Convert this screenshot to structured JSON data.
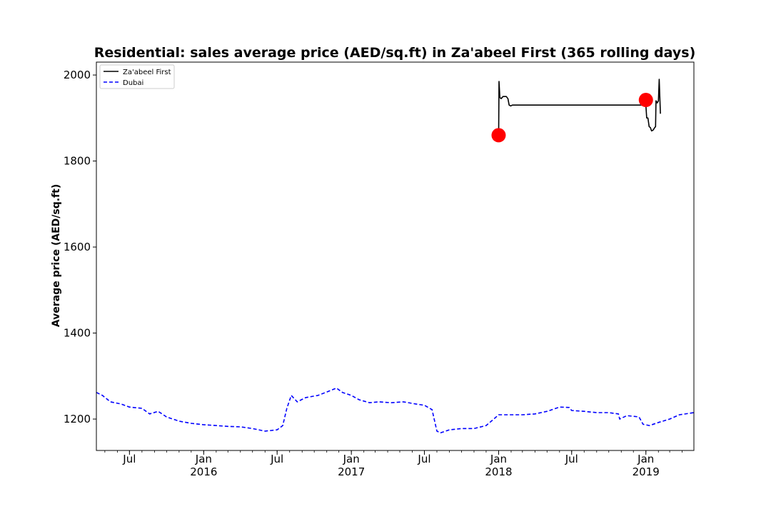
{
  "chart_data": {
    "type": "line",
    "title": "Residential: sales average price (AED/sq.ft) in Za'abeel First (365 rolling days)",
    "xlabel": "",
    "ylabel": "Average price (AED/sq.ft)",
    "xlim": [
      "2015-04-10",
      "2019-04-30"
    ],
    "ylim": [
      1127,
      2030
    ],
    "yticks": [
      1200,
      1400,
      1600,
      1800,
      2000
    ],
    "xticks": [
      {
        "date": "2015-07-01",
        "label": "Jul",
        "year": ""
      },
      {
        "date": "2016-01-01",
        "label": "Jan",
        "year": "2016"
      },
      {
        "date": "2016-07-01",
        "label": "Jul",
        "year": ""
      },
      {
        "date": "2017-01-01",
        "label": "Jan",
        "year": "2017"
      },
      {
        "date": "2017-07-01",
        "label": "Jul",
        "year": ""
      },
      {
        "date": "2018-01-01",
        "label": "Jan",
        "year": "2018"
      },
      {
        "date": "2018-07-01",
        "label": "Jul",
        "year": ""
      },
      {
        "date": "2019-01-01",
        "label": "Jan",
        "year": "2019"
      }
    ],
    "legend": {
      "placement": "top-left"
    },
    "grid": false,
    "series": [
      {
        "name": "Za'abeel First",
        "color": "#000000",
        "style": "solid",
        "points": [
          [
            "2018-01-01",
            1862
          ],
          [
            "2018-01-02",
            1985
          ],
          [
            "2018-01-04",
            1948
          ],
          [
            "2018-01-07",
            1945
          ],
          [
            "2018-01-12",
            1950
          ],
          [
            "2018-01-20",
            1950
          ],
          [
            "2018-01-24",
            1945
          ],
          [
            "2018-01-27",
            1930
          ],
          [
            "2018-01-31",
            1928
          ],
          [
            "2018-02-04",
            1930
          ],
          [
            "2018-05-10",
            1930
          ],
          [
            "2018-09-01",
            1930
          ],
          [
            "2018-12-20",
            1930
          ],
          [
            "2019-01-01",
            1930
          ],
          [
            "2019-01-03",
            1900
          ],
          [
            "2019-01-06",
            1900
          ],
          [
            "2019-01-09",
            1880
          ],
          [
            "2019-01-12",
            1878
          ],
          [
            "2019-01-15",
            1870
          ],
          [
            "2019-01-19",
            1872
          ],
          [
            "2019-01-23",
            1878
          ],
          [
            "2019-01-25",
            1880
          ],
          [
            "2019-01-26",
            1940
          ],
          [
            "2019-01-29",
            1935
          ],
          [
            "2019-02-01",
            1940
          ],
          [
            "2019-02-03",
            1990
          ],
          [
            "2019-02-06",
            1910
          ]
        ]
      },
      {
        "name": "Dubai",
        "color": "#0000ff",
        "style": "dashed",
        "points": [
          [
            "2015-04-10",
            1262
          ],
          [
            "2015-04-25",
            1255
          ],
          [
            "2015-05-15",
            1240
          ],
          [
            "2015-06-10",
            1235
          ],
          [
            "2015-07-01",
            1228
          ],
          [
            "2015-08-01",
            1225
          ],
          [
            "2015-08-20",
            1212
          ],
          [
            "2015-09-10",
            1218
          ],
          [
            "2015-10-01",
            1205
          ],
          [
            "2015-11-01",
            1195
          ],
          [
            "2015-12-01",
            1190
          ],
          [
            "2016-01-01",
            1187
          ],
          [
            "2016-02-01",
            1185
          ],
          [
            "2016-03-01",
            1183
          ],
          [
            "2016-04-01",
            1182
          ],
          [
            "2016-05-01",
            1178
          ],
          [
            "2016-06-01",
            1172
          ],
          [
            "2016-07-01",
            1175
          ],
          [
            "2016-07-15",
            1185
          ],
          [
            "2016-07-25",
            1225
          ],
          [
            "2016-08-05",
            1255
          ],
          [
            "2016-08-20",
            1240
          ],
          [
            "2016-09-10",
            1250
          ],
          [
            "2016-10-10",
            1255
          ],
          [
            "2016-11-01",
            1263
          ],
          [
            "2016-11-25",
            1272
          ],
          [
            "2016-12-10",
            1262
          ],
          [
            "2017-01-01",
            1255
          ],
          [
            "2017-01-20",
            1245
          ],
          [
            "2017-02-15",
            1238
          ],
          [
            "2017-03-10",
            1240
          ],
          [
            "2017-04-10",
            1238
          ],
          [
            "2017-05-10",
            1240
          ],
          [
            "2017-06-10",
            1235
          ],
          [
            "2017-07-01",
            1232
          ],
          [
            "2017-07-20",
            1222
          ],
          [
            "2017-08-01",
            1172
          ],
          [
            "2017-08-10",
            1168
          ],
          [
            "2017-09-01",
            1175
          ],
          [
            "2017-10-01",
            1178
          ],
          [
            "2017-11-01",
            1178
          ],
          [
            "2017-12-01",
            1185
          ],
          [
            "2017-12-20",
            1200
          ],
          [
            "2018-01-01",
            1210
          ],
          [
            "2018-02-01",
            1210
          ],
          [
            "2018-03-01",
            1210
          ],
          [
            "2018-04-01",
            1212
          ],
          [
            "2018-05-01",
            1218
          ],
          [
            "2018-06-01",
            1228
          ],
          [
            "2018-06-25",
            1227
          ],
          [
            "2018-07-01",
            1220
          ],
          [
            "2018-08-01",
            1218
          ],
          [
            "2018-09-01",
            1215
          ],
          [
            "2018-10-01",
            1215
          ],
          [
            "2018-10-25",
            1212
          ],
          [
            "2018-10-28",
            1200
          ],
          [
            "2018-11-15",
            1208
          ],
          [
            "2018-12-15",
            1205
          ],
          [
            "2018-12-25",
            1188
          ],
          [
            "2019-01-10",
            1185
          ],
          [
            "2019-02-01",
            1192
          ],
          [
            "2019-03-01",
            1200
          ],
          [
            "2019-03-25",
            1210
          ],
          [
            "2019-04-30",
            1215
          ]
        ]
      }
    ],
    "highlights": [
      {
        "date": "2018-01-01",
        "value": 1860,
        "color": "#ff0000"
      },
      {
        "date": "2019-01-01",
        "value": 1942,
        "color": "#ff0000"
      }
    ]
  }
}
